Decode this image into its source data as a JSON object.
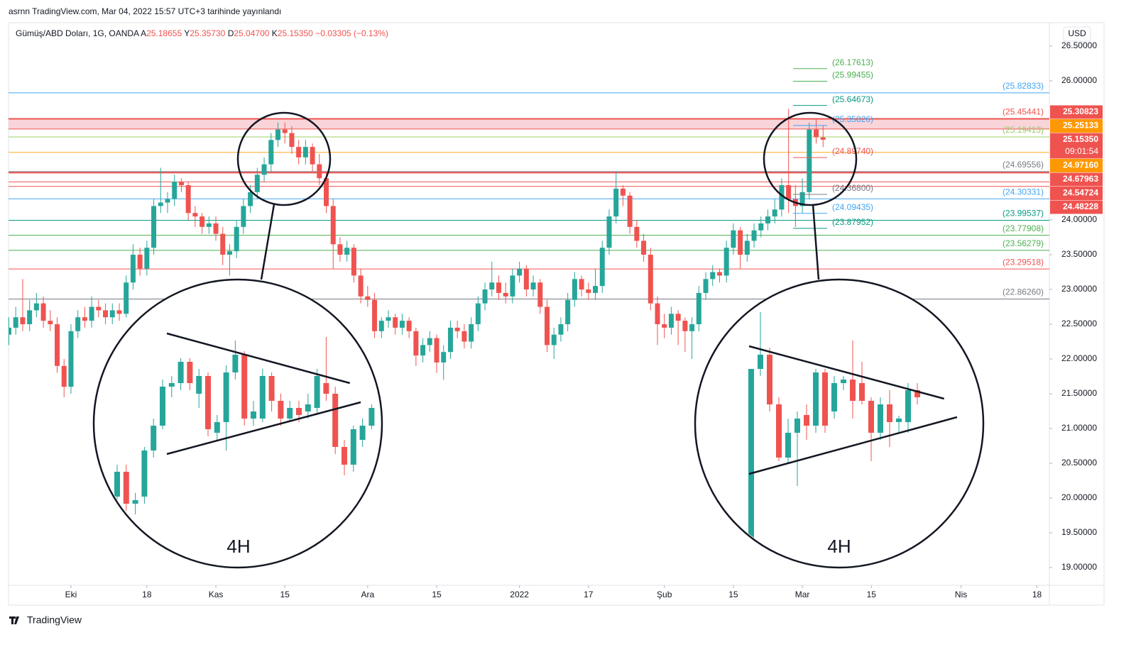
{
  "header": "asrnn TradingView.com, Mar 04, 2022 15:57 UTC+3 tarihinde yayınlandı",
  "legend": {
    "symbol": "Gümüş/ABD Doları, 1G, OANDA",
    "fields": [
      {
        "key": "A",
        "value": "25.18655"
      },
      {
        "key": "Y",
        "value": "25.35730"
      },
      {
        "key": "D",
        "value": "25.04700"
      },
      {
        "key": "K",
        "value": "25.15350"
      }
    ],
    "change": "−0.03305 (−0.13%)",
    "color": "#ef5350"
  },
  "currency": "USD",
  "footer": "TradingView",
  "chart_data": {
    "type": "candlestick",
    "up_color": "#26a69a",
    "down_color": "#ef5350",
    "ylim": [
      18.745,
      26.837
    ],
    "xlim": [
      -0.05,
      150.8
    ],
    "yticks": [
      {
        "value": 26.5,
        "label": "26.50000"
      },
      {
        "value": 26,
        "label": "26.00000"
      },
      {
        "value": 24,
        "label": "24.00000"
      },
      {
        "value": 23.5,
        "label": "23.50000"
      },
      {
        "value": 23,
        "label": "23.00000"
      },
      {
        "value": 22.5,
        "label": "22.50000"
      },
      {
        "value": 22,
        "label": "22.00000"
      },
      {
        "value": 21.5,
        "label": "21.50000"
      },
      {
        "value": 21,
        "label": "21.00000"
      },
      {
        "value": 20.5,
        "label": "20.50000"
      },
      {
        "value": 20,
        "label": "20.00000"
      },
      {
        "value": 19.5,
        "label": "19.50000"
      },
      {
        "value": 19,
        "label": "19.00000"
      }
    ],
    "xticks": [
      {
        "value": 9,
        "label": "Eki"
      },
      {
        "value": 20,
        "label": "18"
      },
      {
        "value": 30,
        "label": "Kas"
      },
      {
        "value": 40,
        "label": "15"
      },
      {
        "value": 52,
        "label": "Ara"
      },
      {
        "value": 62,
        "label": "15"
      },
      {
        "value": 74,
        "label": "2022"
      },
      {
        "value": 84,
        "label": "17"
      },
      {
        "value": 95,
        "label": "Şub"
      },
      {
        "value": 105,
        "label": "15"
      },
      {
        "value": 115,
        "label": "Mar"
      },
      {
        "value": 125,
        "label": "15"
      },
      {
        "value": 138,
        "label": "Nis"
      },
      {
        "value": 149,
        "label": "18"
      }
    ],
    "candles": [
      [
        22.35,
        22.6,
        22.2,
        22.45
      ],
      [
        22.45,
        22.75,
        22.35,
        22.6
      ],
      [
        22.6,
        23.15,
        22.4,
        22.5
      ],
      [
        22.5,
        22.85,
        22.4,
        22.7
      ],
      [
        22.7,
        22.95,
        22.6,
        22.8
      ],
      [
        22.8,
        22.9,
        22.45,
        22.55
      ],
      [
        22.55,
        22.7,
        22.4,
        22.5
      ],
      [
        22.5,
        22.6,
        21.8,
        21.9
      ],
      [
        21.9,
        22.0,
        21.45,
        21.6
      ],
      [
        21.6,
        22.5,
        21.5,
        22.4
      ],
      [
        22.4,
        22.7,
        22.3,
        22.6
      ],
      [
        22.6,
        22.75,
        22.45,
        22.55
      ],
      [
        22.55,
        22.9,
        22.45,
        22.75
      ],
      [
        22.75,
        22.85,
        22.6,
        22.7
      ],
      [
        22.7,
        22.8,
        22.5,
        22.6
      ],
      [
        22.6,
        22.8,
        22.5,
        22.7
      ],
      [
        22.7,
        22.8,
        22.55,
        22.65
      ],
      [
        22.65,
        23.2,
        22.6,
        23.1
      ],
      [
        23.1,
        23.65,
        23.0,
        23.5
      ],
      [
        23.5,
        23.6,
        23.2,
        23.3
      ],
      [
        23.3,
        23.7,
        23.2,
        23.6
      ],
      [
        23.6,
        24.3,
        23.5,
        24.2
      ],
      [
        24.2,
        24.75,
        24.1,
        24.25
      ],
      [
        24.25,
        24.4,
        24.1,
        24.3
      ],
      [
        24.3,
        24.65,
        24.2,
        24.55
      ],
      [
        24.55,
        24.6,
        24.4,
        24.5
      ],
      [
        24.5,
        24.55,
        24.0,
        24.1
      ],
      [
        24.1,
        24.2,
        23.9,
        24.05
      ],
      [
        24.05,
        24.1,
        23.8,
        23.9
      ],
      [
        23.9,
        24.05,
        23.8,
        23.95
      ],
      [
        23.95,
        24.05,
        23.7,
        23.8
      ],
      [
        23.8,
        23.9,
        23.35,
        23.5
      ],
      [
        23.5,
        23.65,
        23.2,
        23.55
      ],
      [
        23.55,
        24.0,
        23.45,
        23.9
      ],
      [
        23.9,
        24.3,
        23.8,
        24.2
      ],
      [
        24.2,
        24.5,
        24.1,
        24.4
      ],
      [
        24.4,
        24.75,
        24.3,
        24.65
      ],
      [
        24.65,
        24.9,
        24.55,
        24.8
      ],
      [
        24.8,
        25.25,
        24.7,
        25.15
      ],
      [
        25.15,
        25.4,
        25.05,
        25.3
      ],
      [
        25.3,
        25.4,
        25.1,
        25.25
      ],
      [
        25.25,
        25.35,
        24.95,
        25.05
      ],
      [
        25.05,
        25.15,
        24.8,
        24.9
      ],
      [
        24.9,
        25.15,
        24.8,
        25.05
      ],
      [
        25.05,
        25.1,
        24.7,
        24.8
      ],
      [
        24.8,
        24.95,
        24.5,
        24.6
      ],
      [
        24.6,
        24.7,
        24.1,
        24.2
      ],
      [
        24.2,
        24.3,
        23.3,
        23.65
      ],
      [
        23.65,
        23.75,
        23.4,
        23.5
      ],
      [
        23.5,
        23.7,
        23.4,
        23.6
      ],
      [
        23.6,
        23.65,
        23.1,
        23.2
      ],
      [
        23.2,
        23.3,
        22.8,
        22.9
      ],
      [
        22.9,
        23.05,
        22.75,
        22.85
      ],
      [
        22.85,
        22.95,
        22.3,
        22.4
      ],
      [
        22.4,
        22.6,
        22.3,
        22.55
      ],
      [
        22.55,
        22.7,
        22.45,
        22.6
      ],
      [
        22.6,
        22.65,
        22.35,
        22.45
      ],
      [
        22.45,
        22.65,
        22.35,
        22.55
      ],
      [
        22.55,
        22.6,
        22.3,
        22.4
      ],
      [
        22.4,
        22.45,
        21.9,
        22.05
      ],
      [
        22.05,
        22.3,
        21.95,
        22.2
      ],
      [
        22.2,
        22.4,
        22.1,
        22.3
      ],
      [
        22.3,
        22.35,
        21.8,
        21.95
      ],
      [
        21.95,
        22.2,
        21.7,
        22.1
      ],
      [
        22.1,
        22.55,
        22.0,
        22.45
      ],
      [
        22.45,
        22.55,
        22.3,
        22.4
      ],
      [
        22.4,
        22.5,
        22.15,
        22.25
      ],
      [
        22.25,
        22.6,
        22.15,
        22.5
      ],
      [
        22.5,
        22.9,
        22.4,
        22.8
      ],
      [
        22.8,
        23.1,
        22.7,
        23.0
      ],
      [
        23.0,
        23.4,
        22.9,
        23.1
      ],
      [
        23.1,
        23.2,
        22.85,
        22.95
      ],
      [
        22.95,
        23.1,
        22.8,
        22.9
      ],
      [
        22.9,
        23.3,
        22.8,
        23.2
      ],
      [
        23.2,
        23.4,
        23.1,
        23.3
      ],
      [
        23.3,
        23.35,
        22.9,
        23.0
      ],
      [
        23.0,
        23.2,
        22.9,
        23.1
      ],
      [
        23.1,
        23.15,
        22.65,
        22.75
      ],
      [
        22.75,
        22.85,
        22.1,
        22.2
      ],
      [
        22.2,
        22.45,
        22.0,
        22.35
      ],
      [
        22.35,
        22.6,
        22.25,
        22.5
      ],
      [
        22.5,
        22.95,
        22.4,
        22.85
      ],
      [
        22.85,
        23.25,
        22.75,
        23.15
      ],
      [
        23.15,
        23.2,
        22.9,
        23.0
      ],
      [
        23.0,
        23.1,
        22.85,
        22.95
      ],
      [
        22.95,
        23.3,
        22.85,
        23.05
      ],
      [
        23.05,
        23.7,
        22.95,
        23.6
      ],
      [
        23.6,
        24.15,
        23.5,
        24.05
      ],
      [
        24.05,
        24.7,
        23.95,
        24.45
      ],
      [
        24.45,
        24.5,
        24.2,
        24.35
      ],
      [
        24.35,
        24.4,
        23.8,
        23.9
      ],
      [
        23.9,
        24.0,
        23.6,
        23.7
      ],
      [
        23.7,
        23.8,
        23.4,
        23.5
      ],
      [
        23.5,
        23.6,
        22.7,
        22.8
      ],
      [
        22.8,
        22.9,
        22.2,
        22.5
      ],
      [
        22.5,
        22.65,
        22.3,
        22.45
      ],
      [
        22.45,
        22.75,
        22.35,
        22.65
      ],
      [
        22.65,
        22.7,
        22.2,
        22.55
      ],
      [
        22.55,
        22.6,
        22.1,
        22.4
      ],
      [
        22.4,
        22.6,
        22.0,
        22.5
      ],
      [
        22.5,
        23.05,
        22.4,
        22.95
      ],
      [
        22.95,
        23.25,
        22.85,
        23.15
      ],
      [
        23.15,
        23.35,
        23.05,
        23.25
      ],
      [
        23.25,
        23.3,
        23.1,
        23.2
      ],
      [
        23.2,
        23.7,
        23.1,
        23.6
      ],
      [
        23.6,
        23.95,
        23.5,
        23.85
      ],
      [
        23.85,
        23.9,
        23.3,
        23.5
      ],
      [
        23.5,
        23.8,
        23.4,
        23.7
      ],
      [
        23.7,
        23.95,
        23.6,
        23.85
      ],
      [
        23.85,
        24.05,
        23.75,
        23.95
      ],
      [
        23.95,
        24.15,
        23.85,
        24.05
      ],
      [
        24.05,
        24.3,
        23.95,
        24.15
      ],
      [
        24.15,
        24.6,
        24.05,
        24.5
      ],
      [
        24.5,
        25.6,
        24.1,
        24.3
      ],
      [
        24.3,
        24.5,
        23.9,
        24.2
      ],
      [
        24.2,
        24.6,
        24.1,
        24.4
      ],
      [
        24.4,
        25.4,
        24.3,
        25.3
      ],
      [
        25.3,
        25.45,
        25.1,
        25.19
      ],
      [
        25.18655,
        25.3573,
        25.047,
        25.1535
      ]
    ],
    "zone": {
      "from": 25.30823,
      "to": 25.45441,
      "color": "#f8c9cf"
    },
    "levels": [
      {
        "value": 25.82833,
        "label": "(25.82833)",
        "color": "#42a5f5"
      },
      {
        "value": 25.45441,
        "label": "(25.45441)",
        "color": "#ef5350",
        "width": 2
      },
      {
        "value": 25.30823,
        "color": "#ef5350"
      },
      {
        "value": 25.19413,
        "label": "(25.19413)",
        "color": "#9ccc65"
      },
      {
        "value": 24.9716,
        "color": "#ffa726"
      },
      {
        "value": 24.69556,
        "label": "(24.69556)",
        "color": "#787b86"
      },
      {
        "value": 24.67963,
        "color": "#ef5350",
        "width": 2
      },
      {
        "value": 24.54724,
        "color": "#ef5350"
      },
      {
        "value": 24.48228,
        "color": "#ef5350"
      },
      {
        "value": 24.30331,
        "label": "(24.30331)",
        "color": "#42a5f5"
      },
      {
        "value": 23.99537,
        "label": "(23.99537)",
        "color": "#089981"
      },
      {
        "value": 23.77908,
        "label": "(23.77908)",
        "color": "#4caf50"
      },
      {
        "value": 23.56279,
        "label": "(23.56279)",
        "color": "#4caf50"
      },
      {
        "value": 23.29518,
        "label": "(23.29518)",
        "color": "#ef5350"
      },
      {
        "value": 22.8626,
        "label": "(22.86260)",
        "color": "#787b86"
      }
    ],
    "fib_levels": [
      {
        "value": 26.17613,
        "label": "(26.17613)",
        "color": "#4caf50"
      },
      {
        "value": 25.99455,
        "label": "(25.99455)",
        "color": "#4caf50"
      },
      {
        "value": 25.64673,
        "label": "(25.64673)",
        "color": "#089981"
      },
      {
        "value": 25.35826,
        "label": "(25.35826)",
        "color": "#42a5f5"
      },
      {
        "value": 24.8974,
        "label": "(24.89740)",
        "color": "#ef5350"
      },
      {
        "value": 24.368,
        "label": "(24.36800)",
        "color": "#787b86"
      },
      {
        "value": 24.09435,
        "label": "(24.09435)",
        "color": "#42a5f5"
      },
      {
        "value": 23.87952,
        "label": "(23.87952)",
        "color": "#089981"
      }
    ],
    "price_tags": [
      {
        "value": 25.30823,
        "color": "#ef5350"
      },
      {
        "value": 25.25133,
        "color": "#ff9800"
      },
      {
        "value": 25.1535,
        "label": "25.15350",
        "color": "#ef5350",
        "countdown": "09:01:54"
      },
      {
        "value": 24.9716,
        "label": "24.97160",
        "color": "#ff9800"
      },
      {
        "value": 24.67963,
        "color": "#ef5350"
      },
      {
        "value": 24.54724,
        "color": "#ef5350"
      },
      {
        "value": 24.48228,
        "color": "#ef5350"
      }
    ]
  },
  "insets": [
    {
      "label": "4H",
      "ylim": [
        24.4,
        25.48
      ],
      "candles": [
        [
          24.52,
          24.7,
          24.46,
          24.66
        ],
        [
          24.66,
          24.7,
          24.44,
          24.48
        ],
        [
          24.48,
          24.54,
          24.42,
          24.5
        ],
        [
          24.52,
          24.8,
          24.48,
          24.78
        ],
        [
          24.78,
          24.96,
          24.74,
          24.92
        ],
        [
          24.92,
          25.18,
          24.9,
          25.14
        ],
        [
          25.14,
          25.2,
          25.08,
          25.16
        ],
        [
          25.16,
          25.3,
          25.12,
          25.28
        ],
        [
          25.28,
          25.3,
          25.12,
          25.16
        ],
        [
          25.1,
          25.24,
          25.02,
          25.2
        ],
        [
          25.2,
          25.22,
          24.86,
          24.9
        ],
        [
          24.88,
          24.98,
          24.84,
          24.94
        ],
        [
          24.94,
          25.26,
          24.78,
          25.22
        ],
        [
          25.22,
          25.4,
          25.18,
          25.32
        ],
        [
          25.32,
          25.34,
          24.92,
          24.96
        ],
        [
          24.96,
          25.06,
          24.92,
          25.0
        ],
        [
          24.96,
          25.24,
          24.94,
          25.2
        ],
        [
          25.2,
          25.22,
          25.0,
          25.06
        ],
        [
          25.06,
          25.1,
          24.92,
          24.96
        ],
        [
          24.96,
          25.06,
          24.94,
          25.02
        ],
        [
          25.02,
          25.06,
          24.94,
          24.98
        ],
        [
          25.0,
          25.1,
          24.96,
          25.04
        ],
        [
          25.02,
          25.24,
          24.98,
          25.2
        ],
        [
          25.16,
          25.42,
          25.06,
          25.1
        ],
        [
          25.1,
          25.14,
          24.76,
          24.8
        ],
        [
          24.8,
          24.84,
          24.64,
          24.7
        ],
        [
          24.7,
          24.92,
          24.66,
          24.9
        ],
        [
          24.84,
          24.96,
          24.8,
          24.92
        ],
        [
          24.92,
          25.04,
          24.9,
          25.02
        ]
      ],
      "trendlines": [
        [
          [
            5.47,
            25.44
          ],
          [
            25.6,
            25.16
          ]
        ],
        [
          [
            5.47,
            24.76
          ],
          [
            26.8,
            25.052
          ]
        ]
      ]
    },
    {
      "label": "4H",
      "ylim": [
        23.75,
        25.4
      ],
      "candles": [
        [
          23.7,
          24.95,
          23.6,
          24.95
        ],
        [
          24.95,
          25.35,
          24.9,
          25.05
        ],
        [
          25.05,
          25.1,
          24.65,
          24.7
        ],
        [
          24.7,
          24.75,
          24.3,
          24.325
        ],
        [
          24.325,
          24.6,
          24.28,
          24.5
        ],
        [
          24.5,
          24.65,
          24.125,
          24.6
        ],
        [
          24.625,
          24.7,
          24.45,
          24.55
        ],
        [
          24.55,
          24.95,
          24.5,
          24.925
        ],
        [
          24.925,
          24.95,
          24.5,
          24.55
        ],
        [
          24.65,
          24.9,
          24.6,
          24.85
        ],
        [
          24.85,
          24.9,
          24.8,
          24.875
        ],
        [
          24.875,
          25.15,
          24.6,
          24.725
        ],
        [
          24.85,
          25.0,
          24.7,
          24.725
        ],
        [
          24.725,
          24.75,
          24.3,
          24.5
        ],
        [
          24.5,
          24.75,
          24.45,
          24.7
        ],
        [
          24.7,
          24.8,
          24.4,
          24.575
        ],
        [
          24.575,
          24.62,
          24.5,
          24.6
        ],
        [
          24.575,
          24.85,
          24.5,
          24.8
        ],
        [
          24.8,
          24.85,
          24.7,
          24.75
        ]
      ],
      "trendlines": [
        [
          [
            -0.23,
            25.11
          ],
          [
            20.9,
            24.74
          ]
        ],
        [
          [
            -0.23,
            24.21
          ],
          [
            22.3,
            24.61
          ]
        ]
      ]
    }
  ]
}
